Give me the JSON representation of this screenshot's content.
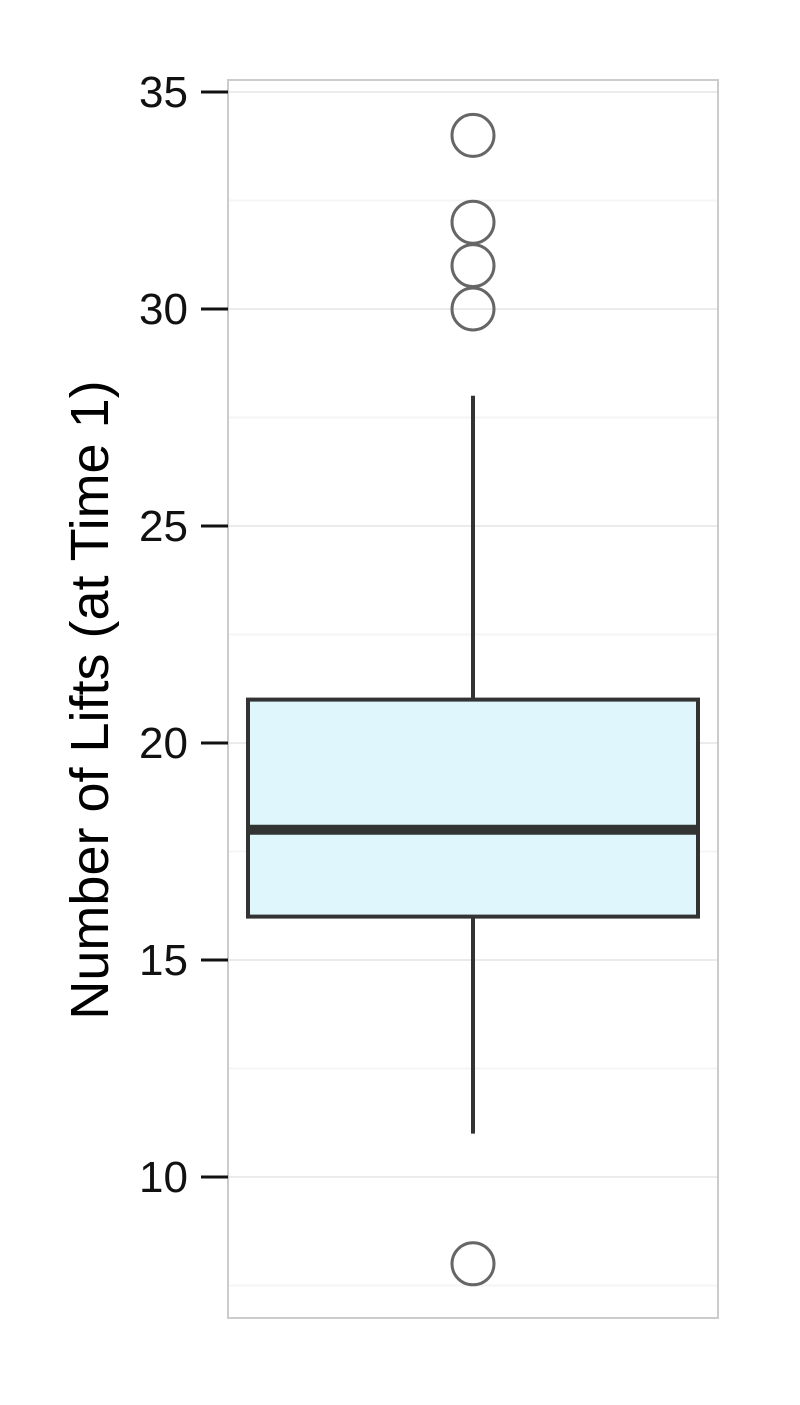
{
  "chart_data": {
    "type": "box",
    "ylabel": "Number of Lifts (at Time 1)",
    "xlabel": "",
    "ylim": [
      7,
      35.5
    ],
    "y_ticks": [
      10,
      15,
      20,
      25,
      30,
      35
    ],
    "y_tick_labels": [
      "10",
      "15",
      "20",
      "25",
      "30",
      "35"
    ],
    "grid": true,
    "box": {
      "q1": 16,
      "median": 18,
      "q3": 21,
      "whisker_low": 11,
      "whisker_high": 28,
      "outliers": [
        34,
        32,
        31,
        30,
        8
      ]
    },
    "colors": {
      "box_fill": "#dff6fd",
      "box_stroke": "#333333",
      "panel_border": "#cccccc",
      "grid_major": "#ebebeb",
      "grid_minor": "#f5f5f5",
      "outlier_stroke": "#666666"
    }
  }
}
